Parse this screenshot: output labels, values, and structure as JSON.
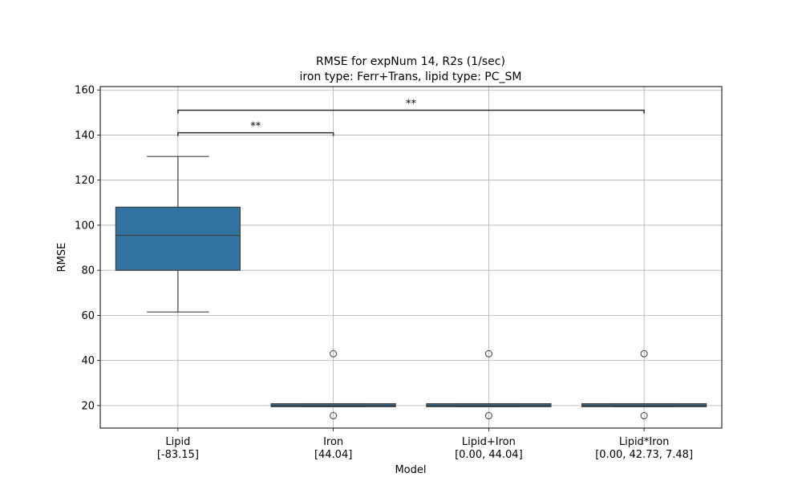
{
  "chart_data": {
    "type": "box",
    "title_line1": "RMSE for expNum 14, R2s (1/sec)",
    "title_line2": "iron type: Ferr+Trans, lipid type: PC_SM",
    "xlabel": "Model",
    "ylabel": "RMSE",
    "ylim": [
      10,
      161.5
    ],
    "yticks": [
      20,
      40,
      60,
      80,
      100,
      120,
      140,
      160
    ],
    "grid": true,
    "box_color": "#3274a1",
    "categories": [
      {
        "name": "Lipid",
        "coef": "[-83.15]"
      },
      {
        "name": "Iron",
        "coef": "[44.04]"
      },
      {
        "name": "Lipid+Iron",
        "coef": "[0.00, 44.04]"
      },
      {
        "name": "Lipid*Iron",
        "coef": "[0.00, 42.73, 7.48]"
      }
    ],
    "boxes": [
      {
        "whisker_low": 61.5,
        "q1": 80,
        "median": 95.5,
        "q3": 108,
        "whisker_high": 130.5,
        "outliers": []
      },
      {
        "whisker_low": 19.5,
        "q1": 19.5,
        "median": 20,
        "q3": 20.8,
        "whisker_high": 20.8,
        "outliers": [
          43,
          15.5
        ]
      },
      {
        "whisker_low": 19.5,
        "q1": 19.5,
        "median": 20,
        "q3": 20.8,
        "whisker_high": 20.8,
        "outliers": [
          43,
          15.5
        ]
      },
      {
        "whisker_low": 19.5,
        "q1": 19.5,
        "median": 20,
        "q3": 20.8,
        "whisker_high": 20.8,
        "outliers": [
          43,
          15.5
        ]
      }
    ],
    "annotations": [
      {
        "from": 0,
        "to": 1,
        "y": 141,
        "label": "**"
      },
      {
        "from": 0,
        "to": 3,
        "y": 151,
        "label": "**"
      }
    ]
  }
}
